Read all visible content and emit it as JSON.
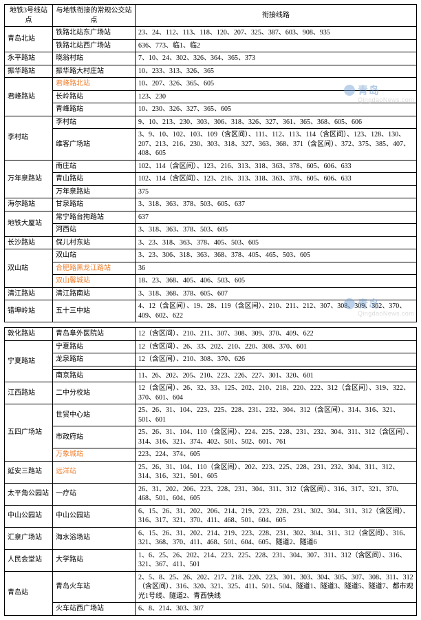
{
  "headers": {
    "col1": "地铁3号线站点",
    "col2": "与地铁衔接的常规公交站点",
    "col3": "衔接线路"
  },
  "watermark": {
    "line1": "青岛",
    "line2": "QingdaoNews.com"
  },
  "table1": [
    {
      "station": "青岛北站",
      "stops": [
        {
          "name": "铁路北站东广场站",
          "routes": "23、24、112、113、118、120、207、325、387、603、908、935"
        },
        {
          "name": "铁路北站西广场站",
          "routes": "636、773、临1、临2"
        }
      ]
    },
    {
      "station": "永平路站",
      "stops": [
        {
          "name": "晓翁村站",
          "routes": "7、10、24、302、326、364、365、373"
        }
      ]
    },
    {
      "station": "振华路站",
      "stops": [
        {
          "name": "振华路大村庄站",
          "routes": "10、233、313、326、365"
        }
      ]
    },
    {
      "station": "君峰路站",
      "stops": [
        {
          "name": "君峰路北站",
          "highlight": true,
          "routes": "10、207、326、365、605"
        },
        {
          "name": "长岭路站",
          "routes": "123、230"
        },
        {
          "name": "青峰路站",
          "routes": "10、230、326、327、365、605"
        }
      ]
    },
    {
      "station": "李村站",
      "stops": [
        {
          "name": "李村站",
          "routes": "9、10、213、230、303、306、318、326、327、361、365、368、605、606"
        },
        {
          "name": "维客广场站",
          "routes": "3、9、10、102、103、109（含区间）、111、112、113、114（含区间）、123、128、130、207、213、216、230、303、318、327、363、368、371（含区间）、372、375、385、407、408、605"
        }
      ]
    },
    {
      "station": "万年泉路站",
      "stops": [
        {
          "name": "南庄站",
          "routes": "102、114（含区间）、123、216、313、318、363、378、605、606、633"
        },
        {
          "name": "青山路站",
          "routes": "102、114（含区间）、123、216、313、318、363、378、605、606、633"
        },
        {
          "name": "万年泉路站",
          "routes": "375"
        }
      ]
    },
    {
      "station": "海尔路站",
      "stops": [
        {
          "name": "甘泉路站",
          "routes": "3、318、363、378、503、605、637"
        }
      ]
    },
    {
      "station": "地铁大厦站",
      "stops": [
        {
          "name": "常宁路台拘路站",
          "routes": "637"
        },
        {
          "name": "河西站",
          "routes": "3、318、363、378、503、605"
        }
      ]
    },
    {
      "station": "长沙路站",
      "stops": [
        {
          "name": "保儿村东站",
          "routes": "3、23、318、363、378、405、503、605"
        }
      ]
    },
    {
      "station": "双山站",
      "stops": [
        {
          "name": "双山站",
          "routes": "3、23、306、318、363、368、378、405、465、503、605"
        },
        {
          "name": "合肥路黑龙江路站",
          "highlight": true,
          "routes": "36"
        },
        {
          "name": "双山馨城站",
          "highlight": true,
          "routes": "18、23、368、405、406、503、605"
        }
      ]
    },
    {
      "station": "清江路站",
      "stops": [
        {
          "name": "清江路南站",
          "routes": "3、318、368、378、605、607"
        }
      ]
    },
    {
      "station": "错埠岭站",
      "stops": [
        {
          "name": "五十三中站",
          "routes": "4、12（含区间）、19、28、119（含区间）、210、211、212、307、308、309、362、370、409、602、622"
        }
      ]
    }
  ],
  "table2": [
    {
      "station": "敦化路站",
      "stops": [
        {
          "name": "青岛阜外医院站",
          "routes": "12（含区间）、210、211、307、308、309、370、409、622"
        }
      ]
    },
    {
      "station": "宁夏路站",
      "stops": [
        {
          "name": "宁夏路站",
          "routes": "12（含区间）、26、33、202、210、220、308、370、601"
        },
        {
          "name": "龙泉路站",
          "routes": "12（含区间）、210、308、370、626"
        },
        {
          "name": "",
          "routes": ""
        },
        {
          "name": "南京路站",
          "routes": "11、26、202、205、210、223、226、227、301、320、601"
        }
      ]
    },
    {
      "station": "江西路站",
      "stops": [
        {
          "name": "二中分校站",
          "routes": "12（含区间）、26、32、33、125、202、210、218、220、222、312（含区间）、319、322、370、601、604"
        }
      ]
    },
    {
      "station": "五四广场站",
      "stops": [
        {
          "name": "世贸中心站",
          "routes": "25、26、31、104、223、225、228、231、232、304、312（含区间）、314、316、321、501、601"
        },
        {
          "name": "市政府站",
          "routes": "25、26、31、104、110（含区间）、224、225、228、231、232、304、311、312（含区间）、314、316、321、374、402、501、502、601、761"
        },
        {
          "name": "万象城站",
          "highlight": true,
          "routes": "223、224、374、605"
        }
      ]
    },
    {
      "station": "延安三路站",
      "stops": [
        {
          "name": "远洋站",
          "highlight": true,
          "routes": "25、26、31、104、110（含区间）、202、223、225、228、231、232、304、311、312、314、316、321、501、605"
        }
      ]
    },
    {
      "station": "太平角公园站",
      "stops": [
        {
          "name": "一疗站",
          "routes": "26、31、202、206、223、228、231、304、311、312（含区间）、316、317、321、370、468、501、604、605"
        }
      ]
    },
    {
      "station": "中山公园站",
      "stops": [
        {
          "name": "中山公园站",
          "routes": "6、15、26、31、202、206、214、219、223、228、231、302、304、311、312（含区间）、316、317、321、370、411、468、501、604、605"
        }
      ]
    },
    {
      "station": "汇泉广场站",
      "stops": [
        {
          "name": "海水浴场站",
          "routes": "6、15、26、31、202、214、219、223、228、231、302、304、311、312（含区间）、316、321、368、370、411、468、501、604、605、隧道2、隧道6"
        }
      ]
    },
    {
      "station": "人民会堂站",
      "stops": [
        {
          "name": "大学路站",
          "routes": "1、6、25、26、202、214、223、225、228、231、304、307、311、312（含区间）、316、321、367、411、501"
        }
      ]
    },
    {
      "station": "青岛站",
      "stops": [
        {
          "name": "青岛火车站",
          "routes": "2、5、8、25、26、202、217、218、220、223、301、303、304、305、307、308、311、312（含区间）、316、320、321、325、411、501、504、隧道1、隧道3、隧道5、隧道7、都市观光1号线、隧道2、青西快线"
        },
        {
          "name": "火车站西广场站",
          "routes": "6、8、214、303、307"
        }
      ]
    }
  ]
}
